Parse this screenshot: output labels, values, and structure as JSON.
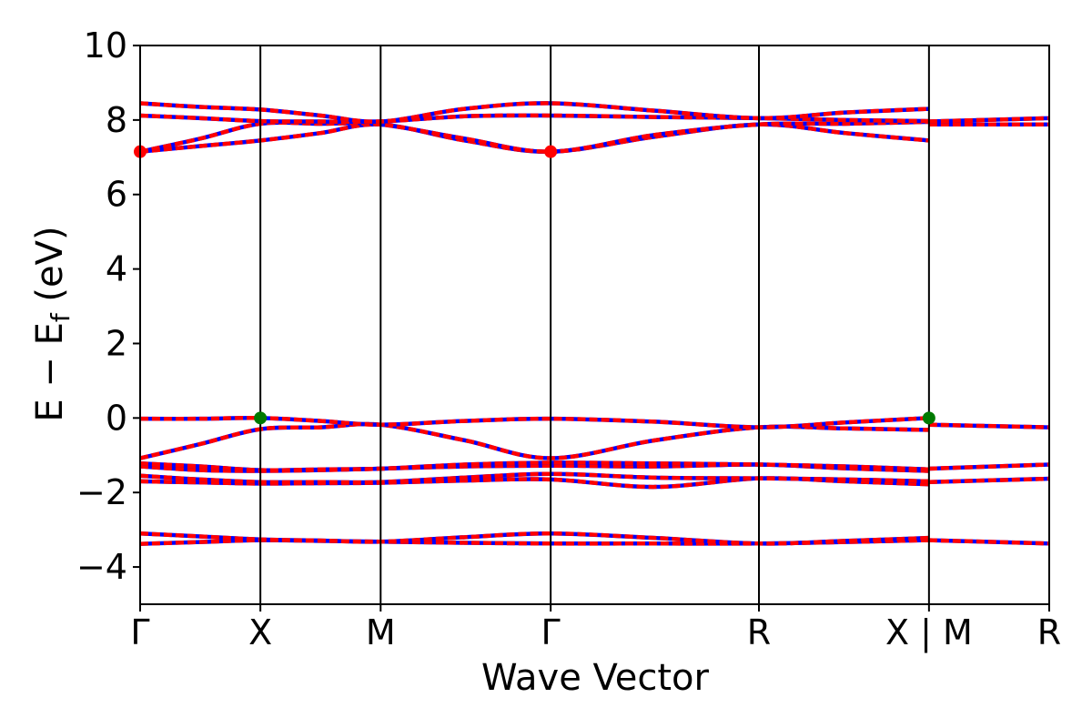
{
  "chart_data": {
    "type": "line",
    "title": "",
    "xlabel": "Wave Vector",
    "ylabel": {
      "main": "E − E",
      "sub": "f",
      "unit": " (eV)"
    },
    "ylim": [
      -5,
      10
    ],
    "yticks": [
      -4,
      -2,
      0,
      2,
      4,
      6,
      8,
      10
    ],
    "ytick_labels": [
      "−4",
      "−2",
      "0",
      "2",
      "4",
      "6",
      "8",
      "10"
    ],
    "kpoints": [
      {
        "label": "Γ",
        "k": 0.0
      },
      {
        "label": "X",
        "k": 0.5
      },
      {
        "label": "M",
        "k": 1.0
      },
      {
        "label": "Γ",
        "k": 1.707
      },
      {
        "label": "R",
        "k": 2.573
      },
      {
        "label": "X | M",
        "k": 3.28
      },
      {
        "label": "R",
        "k": 3.78
      }
    ],
    "break_at_k": 3.28,
    "series_colors": {
      "spin_up": "#0000ff",
      "spin_down": "#ff0000",
      "vbm_marker": "#007a00",
      "cbm_marker": "#ff0000"
    },
    "bands": [
      {
        "name": "",
        "x": [
          0,
          0.25,
          0.5,
          0.75,
          1.0,
          1.35,
          1.707,
          2.14,
          2.573,
          2.93,
          3.28
        ],
        "y": [
          -3.38,
          -3.33,
          -3.28,
          -3.3,
          -3.32,
          -3.35,
          -3.37,
          -3.37,
          -3.37,
          -3.33,
          -3.28
        ]
      },
      {
        "name": "",
        "x": [
          0,
          0.25,
          0.5,
          0.75,
          1.0,
          1.35,
          1.707,
          2.14,
          2.573,
          2.93,
          3.28
        ],
        "y": [
          -3.1,
          -3.18,
          -3.26,
          -3.29,
          -3.32,
          -3.2,
          -3.1,
          -3.22,
          -3.37,
          -3.3,
          -3.22
        ]
      },
      {
        "name": "",
        "x": [
          0,
          0.25,
          0.5,
          0.75,
          1.0,
          1.35,
          1.707,
          2.14,
          2.573,
          2.93,
          3.28
        ],
        "y": [
          -1.7,
          -1.73,
          -1.76,
          -1.75,
          -1.74,
          -1.68,
          -1.65,
          -1.85,
          -1.62,
          -1.7,
          -1.78
        ]
      },
      {
        "name": "",
        "x": [
          0,
          0.25,
          0.5,
          0.75,
          1.0,
          1.35,
          1.707,
          2.14,
          2.573,
          2.93,
          3.28
        ],
        "y": [
          -1.55,
          -1.65,
          -1.72,
          -1.72,
          -1.72,
          -1.6,
          -1.5,
          -1.6,
          -1.62,
          -1.65,
          -1.7
        ]
      },
      {
        "name": "",
        "x": [
          0,
          0.25,
          0.5,
          0.75,
          1.0,
          1.35,
          1.707,
          2.14,
          2.573,
          2.93,
          3.28
        ],
        "y": [
          -1.3,
          -1.4,
          -1.42,
          -1.4,
          -1.36,
          -1.3,
          -1.28,
          -1.3,
          -1.25,
          -1.35,
          -1.42
        ]
      },
      {
        "name": "",
        "x": [
          0,
          0.25,
          0.5,
          0.75,
          1.0,
          1.35,
          1.707,
          2.14,
          2.573,
          2.93,
          3.28
        ],
        "y": [
          -1.22,
          -1.3,
          -1.4,
          -1.38,
          -1.36,
          -1.25,
          -1.2,
          -1.22,
          -1.25,
          -1.3,
          -1.38
        ]
      },
      {
        "name": "",
        "x": [
          0,
          0.25,
          0.5,
          0.75,
          1.0,
          1.35,
          1.707,
          2.14,
          2.573,
          2.93,
          3.28
        ],
        "y": [
          -1.08,
          -0.7,
          -0.3,
          -0.25,
          -0.18,
          -0.6,
          -1.08,
          -0.6,
          -0.25,
          -0.28,
          -0.32
        ]
      },
      {
        "name": "",
        "x": [
          0,
          0.25,
          0.5,
          0.75,
          1.0,
          1.35,
          1.707,
          2.14,
          2.573,
          2.93,
          3.28
        ],
        "y": [
          -0.02,
          -0.02,
          0.0,
          -0.08,
          -0.18,
          -0.08,
          -0.02,
          -0.1,
          -0.25,
          -0.12,
          0.0
        ]
      },
      {
        "name": "",
        "x": [
          0,
          0.25,
          0.5,
          0.75,
          1.0,
          1.35,
          1.707,
          2.14,
          2.573,
          2.93,
          3.28
        ],
        "y": [
          7.15,
          7.3,
          7.45,
          7.65,
          7.88,
          7.45,
          7.15,
          7.55,
          7.88,
          7.65,
          7.45
        ]
      },
      {
        "name": "",
        "x": [
          0,
          0.25,
          0.5,
          0.75,
          1.0,
          1.35,
          1.707,
          2.14,
          2.573,
          2.93,
          3.28
        ],
        "y": [
          7.15,
          7.5,
          7.9,
          7.9,
          7.88,
          7.5,
          7.15,
          7.6,
          7.88,
          7.9,
          7.95
        ]
      },
      {
        "name": "",
        "x": [
          0,
          0.25,
          0.5,
          0.75,
          1.0,
          1.35,
          1.707,
          2.14,
          2.573,
          2.93,
          3.28
        ],
        "y": [
          8.12,
          8.05,
          7.97,
          7.96,
          7.96,
          8.1,
          8.12,
          8.08,
          8.05,
          8.0,
          7.97
        ]
      },
      {
        "name": "",
        "x": [
          0,
          0.25,
          0.5,
          0.75,
          1.0,
          1.35,
          1.707,
          2.14,
          2.573,
          2.93,
          3.28
        ],
        "y": [
          8.45,
          8.35,
          8.28,
          8.12,
          7.96,
          8.3,
          8.45,
          8.25,
          8.05,
          8.2,
          8.3
        ]
      }
    ],
    "bands_after_break": [
      {
        "name": "",
        "x": [
          3.28,
          3.78
        ],
        "y": [
          -3.28,
          -3.37
        ]
      },
      {
        "name": "",
        "x": [
          3.28,
          3.78
        ],
        "y": [
          -1.72,
          -1.63
        ]
      },
      {
        "name": "",
        "x": [
          3.28,
          3.78
        ],
        "y": [
          -1.36,
          -1.25
        ]
      },
      {
        "name": "",
        "x": [
          3.28,
          3.78
        ],
        "y": [
          -0.18,
          -0.25
        ]
      },
      {
        "name": "",
        "x": [
          3.28,
          3.78
        ],
        "y": [
          7.88,
          7.88
        ]
      },
      {
        "name": "",
        "x": [
          3.28,
          3.78
        ],
        "y": [
          7.96,
          8.05
        ]
      }
    ],
    "markers": [
      {
        "type": "cbm",
        "x": 0.0,
        "y": 7.15
      },
      {
        "type": "cbm",
        "x": 1.707,
        "y": 7.15
      },
      {
        "type": "vbm",
        "x": 0.5,
        "y": 0.0
      },
      {
        "type": "vbm",
        "x": 3.28,
        "y": 0.0
      }
    ],
    "grid": false,
    "legend": "none"
  }
}
